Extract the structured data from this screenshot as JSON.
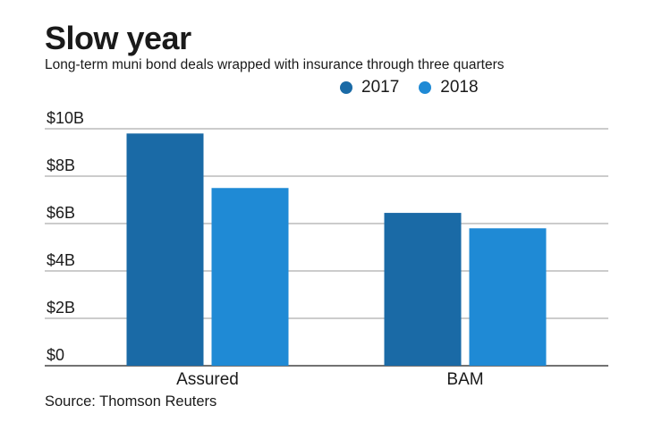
{
  "chart_data": {
    "type": "bar",
    "title": "Slow year",
    "subtitle": "Long-term muni bond deals wrapped with insurance through three quarters",
    "categories": [
      "Assured",
      "BAM"
    ],
    "series": [
      {
        "name": "2017",
        "values": [
          9.8,
          6.45
        ],
        "color": "#1a6aa6"
      },
      {
        "name": "2018",
        "values": [
          7.5,
          5.8
        ],
        "color": "#1f8ad5"
      }
    ],
    "yticks": [
      {
        "value": 0,
        "label": "$0"
      },
      {
        "value": 2,
        "label": "$2B"
      },
      {
        "value": 4,
        "label": "$4B"
      },
      {
        "value": 6,
        "label": "$6B"
      },
      {
        "value": 8,
        "label": "$8B"
      },
      {
        "value": 10,
        "label": "$10B"
      }
    ],
    "ylim": [
      0,
      10
    ],
    "grid": true,
    "legend_position": "top-right",
    "source": "Source: Thomson Reuters"
  }
}
